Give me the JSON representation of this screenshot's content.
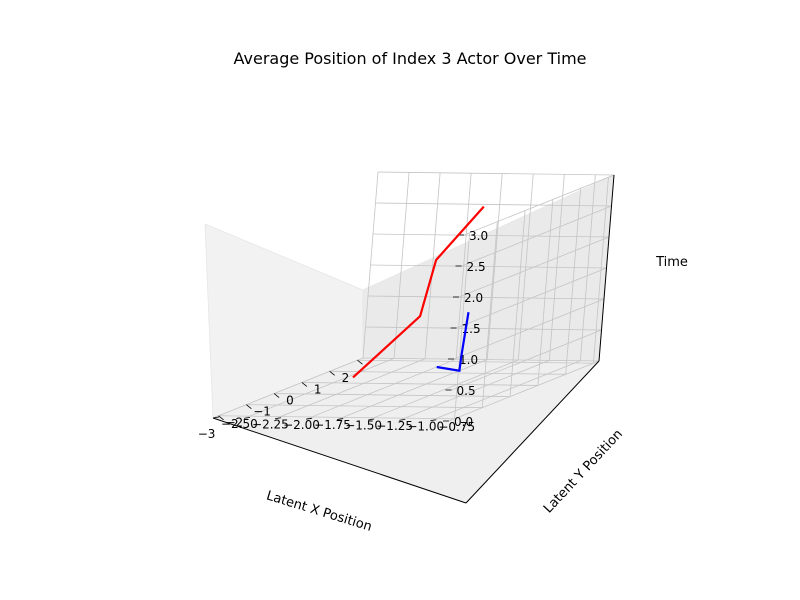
{
  "chart_data": {
    "type": "line3d",
    "title": "Average Position of Index 3 Actor Over Time",
    "xlabel": "Latent X Position",
    "ylabel": "Latent Y Position",
    "zlabel": "Time",
    "xlim": [
      -3.2,
      2.2
    ],
    "ylim": [
      -2.5,
      -0.6
    ],
    "zlim": [
      0,
      3
    ],
    "xticks": [
      "−3",
      "−2",
      "−1",
      "0",
      "1",
      "2"
    ],
    "yticks": [
      "−2.50",
      "−2.25",
      "−2.00",
      "−1.75",
      "−1.50",
      "−1.25",
      "−1.00",
      "−0.75"
    ],
    "zticks": [
      "0.0",
      "0.5",
      "1.0",
      "1.5",
      "2.0",
      "2.5",
      "3.0"
    ],
    "grid": true,
    "series": [
      {
        "color": "#ff0000",
        "x": [
          0.5,
          0.5,
          0.0,
          -0.7
        ],
        "y": [
          -2.2,
          -1.7,
          -1.5,
          -1.0
        ],
        "z": [
          0,
          1,
          2,
          3
        ]
      },
      {
        "color": "#0000ff",
        "x": [
          1.5,
          1.2,
          1.0,
          0.9
        ],
        "y": [
          -1.75,
          -1.5,
          -1.45,
          -1.4
        ],
        "z": [
          0,
          0,
          0.3,
          1.0
        ]
      }
    ]
  }
}
